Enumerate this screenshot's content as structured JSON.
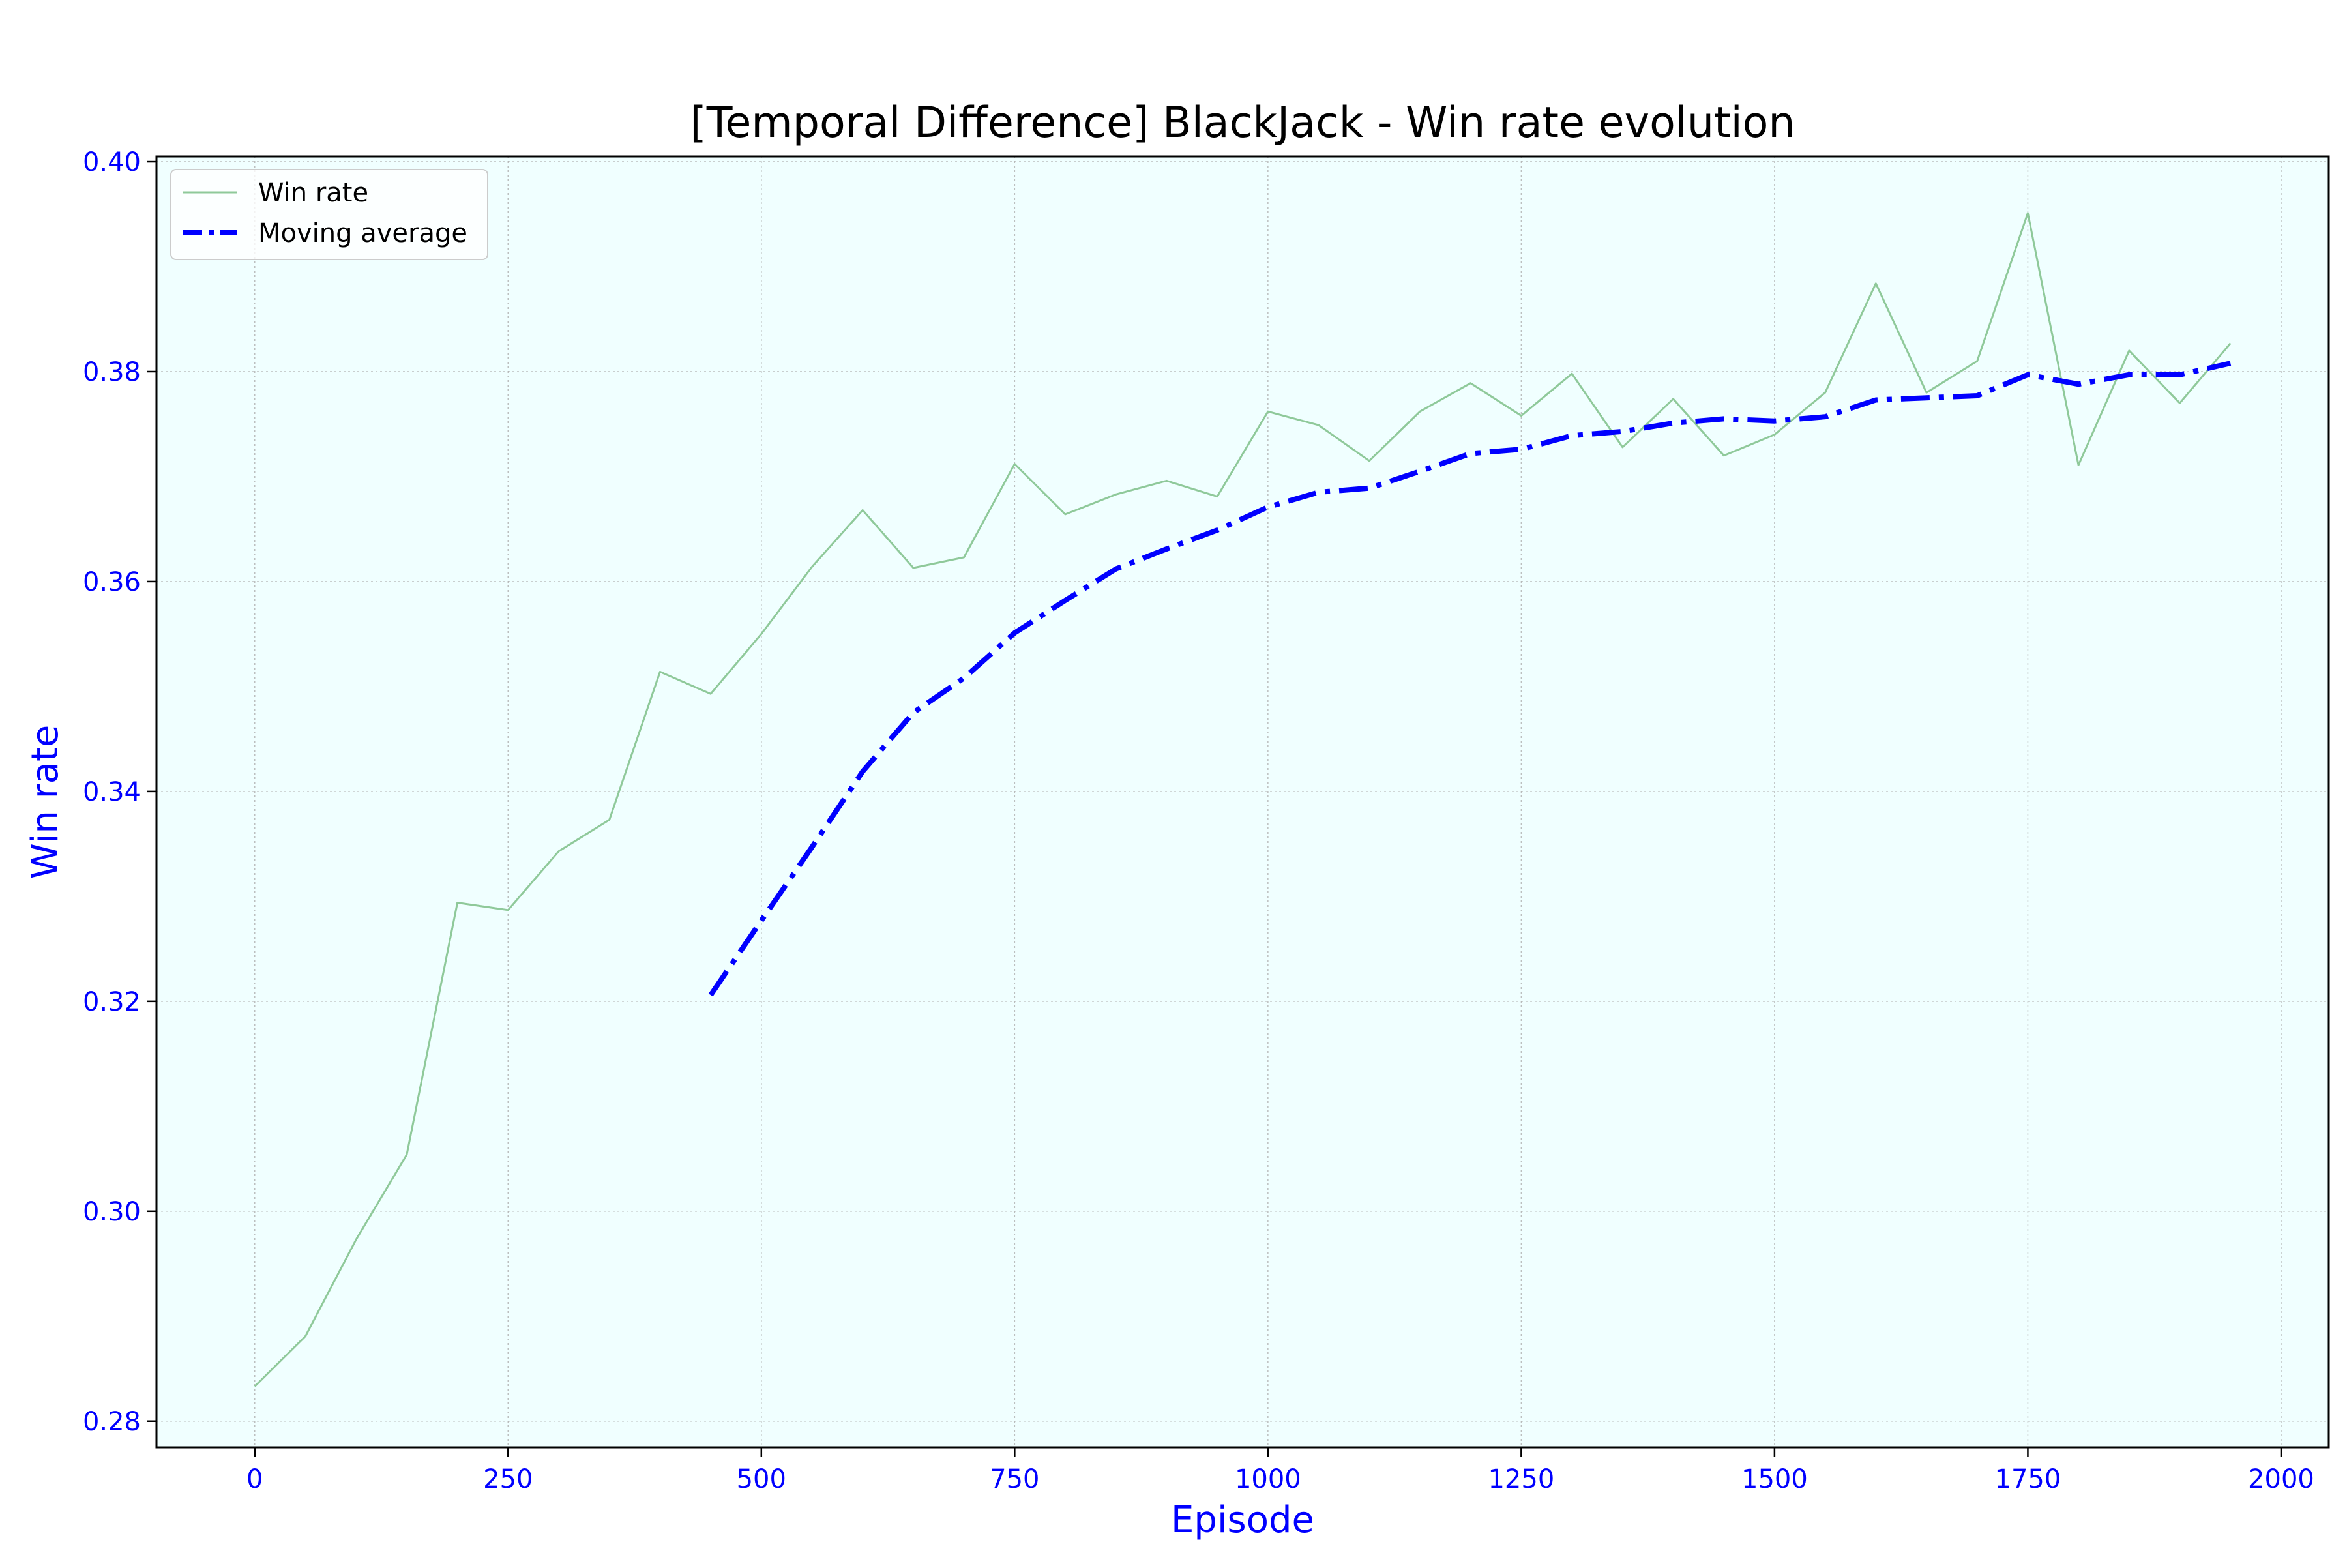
{
  "chart_data": {
    "type": "line",
    "title": "[Temporal Difference] BlackJack - Win rate evolution",
    "xlabel": "Episode",
    "ylabel": "Win rate",
    "xlim": [
      -97,
      2047
    ],
    "ylim": [
      0.2775,
      0.4005
    ],
    "xticks": [
      0,
      250,
      500,
      750,
      1000,
      1250,
      1500,
      1750,
      2000
    ],
    "xtick_labels": [
      "0",
      "250",
      "500",
      "750",
      "1000",
      "1250",
      "1500",
      "1750",
      "2000"
    ],
    "yticks": [
      0.28,
      0.3,
      0.32,
      0.34,
      0.36,
      0.38,
      0.4
    ],
    "ytick_labels": [
      "0.28",
      "0.30",
      "0.32",
      "0.34",
      "0.36",
      "0.38",
      "0.40"
    ],
    "grid": true,
    "legend_position": "top-left",
    "background_color": "#f0ffff",
    "series": [
      {
        "name": "Win rate",
        "style": "solid",
        "color": "#8fc99a",
        "x": [
          0,
          50,
          100,
          150,
          200,
          250,
          300,
          350,
          400,
          450,
          500,
          550,
          600,
          650,
          700,
          750,
          800,
          850,
          900,
          950,
          1000,
          1050,
          1100,
          1150,
          1200,
          1250,
          1300,
          1350,
          1400,
          1450,
          1500,
          1550,
          1600,
          1650,
          1700,
          1750,
          1800,
          1850,
          1900,
          1950
        ],
        "y": [
          0.2833,
          0.2881,
          0.2973,
          0.3054,
          0.3294,
          0.3287,
          0.3343,
          0.3373,
          0.3514,
          0.3493,
          0.355,
          0.3614,
          0.3668,
          0.3613,
          0.3623,
          0.3712,
          0.3664,
          0.3683,
          0.3696,
          0.3681,
          0.3762,
          0.3749,
          0.3715,
          0.3762,
          0.3789,
          0.3758,
          0.3798,
          0.3728,
          0.3774,
          0.372,
          0.374,
          0.378,
          0.3884,
          0.378,
          0.381,
          0.3951,
          0.3711,
          0.382,
          0.377,
          0.3827
        ]
      },
      {
        "name": "Moving average",
        "style": "dashdot",
        "color": "#0000ff",
        "x": [
          450,
          500,
          550,
          600,
          650,
          700,
          750,
          800,
          850,
          900,
          950,
          1000,
          1050,
          1100,
          1150,
          1200,
          1250,
          1300,
          1350,
          1400,
          1450,
          1500,
          1550,
          1600,
          1650,
          1700,
          1750,
          1800,
          1850,
          1900,
          1950
        ],
        "y": [
          0.3206,
          0.3277,
          0.3347,
          0.3419,
          0.3475,
          0.3508,
          0.3551,
          0.3582,
          0.3612,
          0.3631,
          0.3649,
          0.3671,
          0.3685,
          0.3689,
          0.3705,
          0.3722,
          0.3726,
          0.3739,
          0.3743,
          0.3751,
          0.3755,
          0.3753,
          0.3757,
          0.3773,
          0.3775,
          0.3777,
          0.3797,
          0.3788,
          0.3797,
          0.3797,
          0.3808
        ]
      }
    ]
  }
}
